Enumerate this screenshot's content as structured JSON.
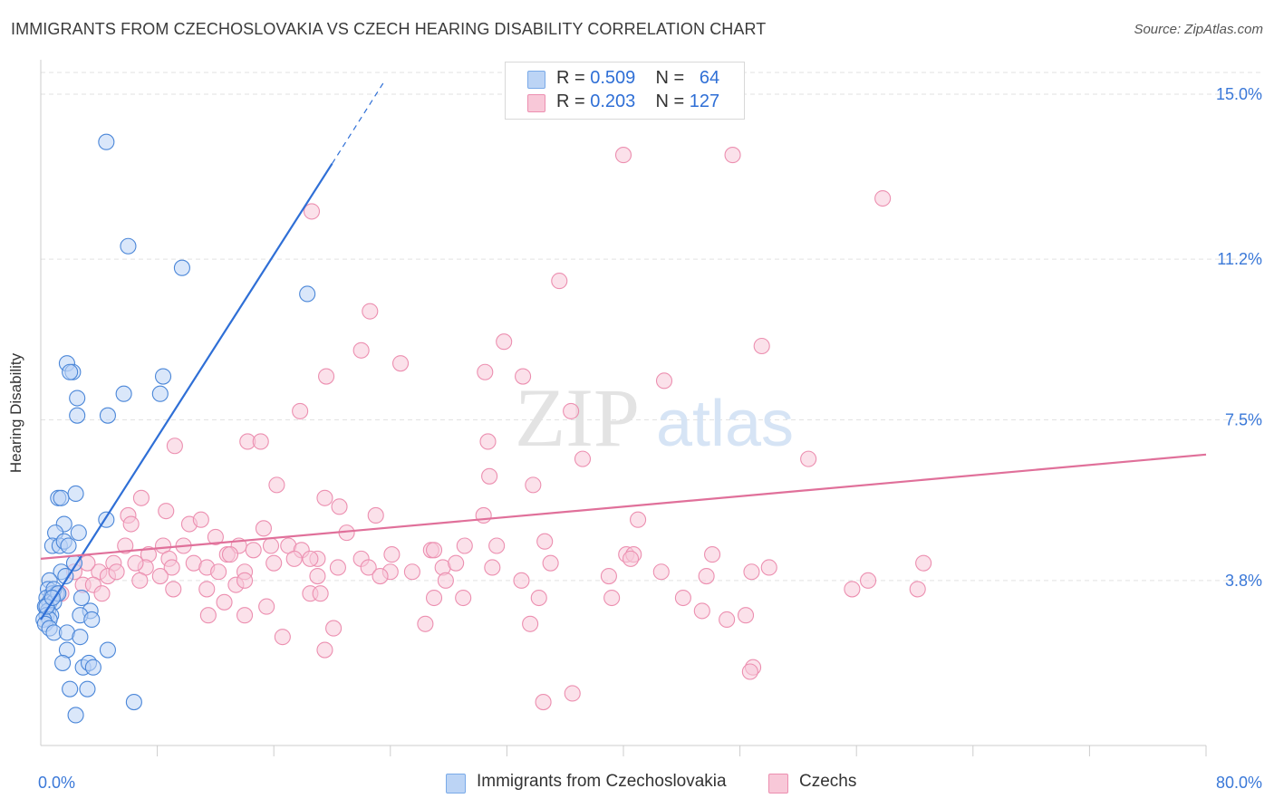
{
  "title": "IMMIGRANTS FROM CZECHOSLOVAKIA VS CZECH HEARING DISABILITY CORRELATION CHART",
  "source": "Source: ZipAtlas.com",
  "watermark": {
    "zip": "ZIP",
    "atlas": "atlas"
  },
  "legend": {
    "r_label": "R =",
    "n_label": "N =",
    "rows": [
      {
        "r": "0.509",
        "n": "64",
        "color": "#7aaae8",
        "fill": "#bcd4f5"
      },
      {
        "r": "0.203",
        "n": "127",
        "color": "#ec8fb0",
        "fill": "#f8c8d8"
      }
    ]
  },
  "chart_data": {
    "type": "scatter",
    "ylabel": "Hearing Disability",
    "xlim": [
      0,
      80
    ],
    "ylim": [
      0,
      15.5
    ],
    "x_tick_labels": [
      {
        "value": 0,
        "label": "0.0%"
      },
      {
        "value": 80,
        "label": "80.0%"
      }
    ],
    "y_tick_labels": [
      {
        "value": 3.8,
        "label": "3.8%"
      },
      {
        "value": 7.5,
        "label": "7.5%"
      },
      {
        "value": 11.2,
        "label": "11.2%"
      },
      {
        "value": 15.0,
        "label": "15.0%"
      }
    ],
    "x_minor_ticks": [
      8,
      16,
      24,
      32,
      40,
      48,
      56,
      64,
      72,
      80
    ],
    "grid": true,
    "series": [
      {
        "name": "Immigrants from Czechoslovakia",
        "color": "#4a86d8",
        "fill": "#bcd4f5",
        "trend": {
          "x0": 0.0,
          "y0": 2.9,
          "x1": 20.0,
          "y1": 13.4,
          "dash_x1": 23.5,
          "dash_y1": 15.25,
          "color": "#2f6fd6"
        },
        "points": [
          [
            4.5,
            13.9
          ],
          [
            6.0,
            11.5
          ],
          [
            9.7,
            11.0
          ],
          [
            18.3,
            10.4
          ],
          [
            1.8,
            8.8
          ],
          [
            2.2,
            8.6
          ],
          [
            2.0,
            8.6
          ],
          [
            8.4,
            8.5
          ],
          [
            8.2,
            8.1
          ],
          [
            5.7,
            8.1
          ],
          [
            2.5,
            8.0
          ],
          [
            2.5,
            7.6
          ],
          [
            4.6,
            7.6
          ],
          [
            1.2,
            5.7
          ],
          [
            1.4,
            5.7
          ],
          [
            2.4,
            5.8
          ],
          [
            4.5,
            5.2
          ],
          [
            1.6,
            5.1
          ],
          [
            1.0,
            4.9
          ],
          [
            0.8,
            4.6
          ],
          [
            1.3,
            4.6
          ],
          [
            1.6,
            4.7
          ],
          [
            1.9,
            4.6
          ],
          [
            2.6,
            4.9
          ],
          [
            2.3,
            4.2
          ],
          [
            1.4,
            4.0
          ],
          [
            1.7,
            3.9
          ],
          [
            0.6,
            3.8
          ],
          [
            0.5,
            3.6
          ],
          [
            0.8,
            3.5
          ],
          [
            1.1,
            3.5
          ],
          [
            0.7,
            3.4
          ],
          [
            0.4,
            3.4
          ],
          [
            0.6,
            3.3
          ],
          [
            0.9,
            3.3
          ],
          [
            0.3,
            3.2
          ],
          [
            0.5,
            3.1
          ],
          [
            0.4,
            3.0
          ],
          [
            0.7,
            3.0
          ],
          [
            0.6,
            2.9
          ],
          [
            0.2,
            2.9
          ],
          [
            0.3,
            2.8
          ],
          [
            0.6,
            2.7
          ],
          [
            0.9,
            2.6
          ],
          [
            2.8,
            3.4
          ],
          [
            3.4,
            3.1
          ],
          [
            2.7,
            3.0
          ],
          [
            3.5,
            2.9
          ],
          [
            1.8,
            2.6
          ],
          [
            2.7,
            2.5
          ],
          [
            1.8,
            2.2
          ],
          [
            4.6,
            2.2
          ],
          [
            1.5,
            1.9
          ],
          [
            2.9,
            1.8
          ],
          [
            3.3,
            1.9
          ],
          [
            3.6,
            1.8
          ],
          [
            2.0,
            1.3
          ],
          [
            3.2,
            1.3
          ],
          [
            2.4,
            0.7
          ],
          [
            6.4,
            1.0
          ],
          [
            0.9,
            3.6
          ],
          [
            1.2,
            3.5
          ],
          [
            0.4,
            3.2
          ],
          [
            0.8,
            3.4
          ]
        ]
      },
      {
        "name": "Czechs",
        "color": "#ec8fb0",
        "fill": "#f8c8d8",
        "trend": {
          "x0": 0.0,
          "y0": 4.3,
          "x1": 80.0,
          "y1": 6.7,
          "color": "#e0709a"
        },
        "points": [
          [
            40.0,
            13.6
          ],
          [
            47.5,
            13.6
          ],
          [
            57.8,
            12.6
          ],
          [
            18.6,
            12.3
          ],
          [
            35.6,
            10.7
          ],
          [
            22.6,
            10.0
          ],
          [
            22.0,
            9.1
          ],
          [
            31.8,
            9.3
          ],
          [
            49.5,
            9.2
          ],
          [
            24.7,
            8.8
          ],
          [
            19.6,
            8.5
          ],
          [
            30.5,
            8.6
          ],
          [
            33.1,
            8.5
          ],
          [
            42.8,
            8.4
          ],
          [
            36.4,
            7.7
          ],
          [
            17.8,
            7.7
          ],
          [
            14.2,
            7.0
          ],
          [
            15.1,
            7.0
          ],
          [
            30.7,
            7.0
          ],
          [
            9.2,
            6.9
          ],
          [
            37.2,
            6.6
          ],
          [
            52.7,
            6.6
          ],
          [
            30.8,
            6.2
          ],
          [
            16.2,
            6.0
          ],
          [
            33.8,
            6.0
          ],
          [
            6.9,
            5.7
          ],
          [
            19.5,
            5.7
          ],
          [
            20.5,
            5.5
          ],
          [
            8.6,
            5.4
          ],
          [
            6.0,
            5.3
          ],
          [
            23.0,
            5.3
          ],
          [
            6.2,
            5.1
          ],
          [
            10.2,
            5.1
          ],
          [
            11.0,
            5.2
          ],
          [
            15.3,
            5.0
          ],
          [
            21.0,
            4.9
          ],
          [
            30.4,
            5.3
          ],
          [
            41.0,
            5.2
          ],
          [
            12.0,
            4.8
          ],
          [
            5.8,
            4.6
          ],
          [
            8.4,
            4.6
          ],
          [
            9.8,
            4.6
          ],
          [
            13.6,
            4.6
          ],
          [
            15.8,
            4.6
          ],
          [
            17.0,
            4.6
          ],
          [
            17.9,
            4.5
          ],
          [
            7.4,
            4.4
          ],
          [
            8.8,
            4.3
          ],
          [
            12.8,
            4.4
          ],
          [
            14.6,
            4.5
          ],
          [
            24.1,
            4.4
          ],
          [
            26.8,
            4.5
          ],
          [
            29.1,
            4.6
          ],
          [
            31.3,
            4.6
          ],
          [
            34.6,
            4.7
          ],
          [
            40.2,
            4.4
          ],
          [
            40.7,
            4.4
          ],
          [
            46.1,
            4.4
          ],
          [
            48.8,
            4.0
          ],
          [
            27.0,
            4.5
          ],
          [
            22.0,
            4.3
          ],
          [
            19.0,
            4.3
          ],
          [
            17.4,
            4.3
          ],
          [
            16.0,
            4.2
          ],
          [
            13.0,
            4.4
          ],
          [
            10.5,
            4.2
          ],
          [
            9.0,
            4.1
          ],
          [
            7.2,
            4.1
          ],
          [
            6.5,
            4.2
          ],
          [
            5.0,
            4.2
          ],
          [
            4.0,
            4.0
          ],
          [
            3.2,
            4.2
          ],
          [
            2.3,
            4.0
          ],
          [
            4.6,
            3.9
          ],
          [
            5.2,
            4.0
          ],
          [
            11.4,
            4.1
          ],
          [
            12.2,
            4.0
          ],
          [
            14.0,
            4.0
          ],
          [
            18.5,
            4.3
          ],
          [
            20.4,
            4.1
          ],
          [
            22.5,
            4.1
          ],
          [
            24.0,
            4.0
          ],
          [
            25.5,
            4.0
          ],
          [
            27.6,
            4.1
          ],
          [
            28.5,
            4.2
          ],
          [
            31.0,
            4.1
          ],
          [
            35.0,
            4.2
          ],
          [
            40.5,
            4.3
          ],
          [
            42.6,
            4.0
          ],
          [
            50.0,
            4.1
          ],
          [
            60.6,
            4.2
          ],
          [
            2.9,
            3.7
          ],
          [
            3.6,
            3.7
          ],
          [
            6.8,
            3.8
          ],
          [
            8.2,
            3.9
          ],
          [
            9.1,
            3.6
          ],
          [
            11.4,
            3.6
          ],
          [
            13.4,
            3.7
          ],
          [
            14.0,
            3.8
          ],
          [
            19.0,
            3.9
          ],
          [
            23.3,
            3.9
          ],
          [
            27.8,
            3.8
          ],
          [
            33.0,
            3.8
          ],
          [
            39.0,
            3.9
          ],
          [
            45.7,
            3.9
          ],
          [
            55.7,
            3.6
          ],
          [
            56.8,
            3.8
          ],
          [
            60.2,
            3.6
          ],
          [
            4.2,
            3.5
          ],
          [
            1.4,
            3.5
          ],
          [
            18.5,
            3.5
          ],
          [
            19.2,
            3.5
          ],
          [
            27.0,
            3.4
          ],
          [
            29.0,
            3.4
          ],
          [
            34.2,
            3.4
          ],
          [
            39.2,
            3.4
          ],
          [
            44.1,
            3.4
          ],
          [
            45.4,
            3.1
          ],
          [
            12.6,
            3.3
          ],
          [
            15.5,
            3.2
          ],
          [
            14.0,
            3.0
          ],
          [
            11.5,
            3.0
          ],
          [
            26.4,
            2.8
          ],
          [
            33.6,
            2.8
          ],
          [
            47.1,
            2.9
          ],
          [
            48.4,
            3.0
          ],
          [
            48.9,
            1.8
          ]
        ],
        "points_extra": [
          [
            16.6,
            2.5
          ],
          [
            20.1,
            2.7
          ],
          [
            19.5,
            2.2
          ],
          [
            48.7,
            1.7
          ],
          [
            36.5,
            1.2
          ],
          [
            34.5,
            1.0
          ]
        ]
      }
    ]
  },
  "bottom_legend": [
    {
      "label": "Immigrants from Czechoslovakia"
    },
    {
      "label": "Czechs"
    }
  ]
}
